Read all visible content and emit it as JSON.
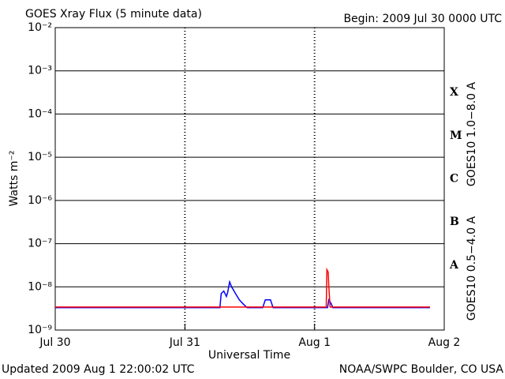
{
  "chart_data": {
    "type": "line",
    "title": "GOES Xray Flux (5 minute data)",
    "subtitle": "Begin:  2009 Jul 30 0000 UTC",
    "x_label": "Universal Time",
    "y_label": "Watts m⁻²",
    "footer_left": "Updated 2009 Aug  1 22:00:02 UTC",
    "footer_right": "NOAA/SWPC Boulder, CO USA",
    "flare_classes": [
      "X",
      "M",
      "C",
      "B",
      "A"
    ],
    "log_y": true,
    "grid": true,
    "xlim": [
      0,
      3
    ],
    "xticks": [
      {
        "value": 0,
        "label": "Jul 30"
      },
      {
        "value": 1,
        "label": "Jul 31"
      },
      {
        "value": 2,
        "label": "Aug 1"
      },
      {
        "value": 3,
        "label": "Aug 2"
      }
    ],
    "ylim": [
      1e-09,
      0.01
    ],
    "yticks": [
      {
        "value": 1e-09,
        "label": "10⁻⁹"
      },
      {
        "value": 1e-08,
        "label": "10⁻⁸"
      },
      {
        "value": 1e-07,
        "label": "10⁻⁷"
      },
      {
        "value": 1e-06,
        "label": "10⁻⁶"
      },
      {
        "value": 1e-05,
        "label": "10⁻⁵"
      },
      {
        "value": 0.0001,
        "label": "10⁻⁴"
      },
      {
        "value": 0.001,
        "label": "10⁻³"
      },
      {
        "value": 0.01,
        "label": "10⁻²"
      }
    ],
    "series": [
      {
        "name": "GOES10 0.5−4.0 A",
        "color": "#0000ff",
        "x": [
          0,
          1.27,
          1.28,
          1.3,
          1.32,
          1.33,
          1.345,
          1.36,
          1.39,
          1.42,
          1.45,
          1.48,
          1.6,
          1.62,
          1.66,
          1.68,
          1.7,
          2.1,
          2.11,
          2.13,
          2.14,
          2.89
        ],
        "values": [
          3.3e-09,
          3.3e-09,
          7e-09,
          8e-09,
          6e-09,
          7.5e-09,
          1.3e-08,
          1e-08,
          7e-09,
          5e-09,
          4e-09,
          3.3e-09,
          3.3e-09,
          5e-09,
          5e-09,
          3.3e-09,
          3.3e-09,
          3.3e-09,
          5e-09,
          4e-09,
          3.3e-09,
          3.3e-09
        ]
      },
      {
        "name": "GOES10 1.0−8.0 A",
        "color": "#ff0000",
        "x": [
          0,
          2.09,
          2.095,
          2.105,
          2.11,
          2.12,
          2.89
        ],
        "values": [
          3.4e-09,
          3.4e-09,
          2.5e-08,
          2.2e-08,
          1e-08,
          3.4e-09,
          3.4e-09
        ]
      }
    ]
  }
}
